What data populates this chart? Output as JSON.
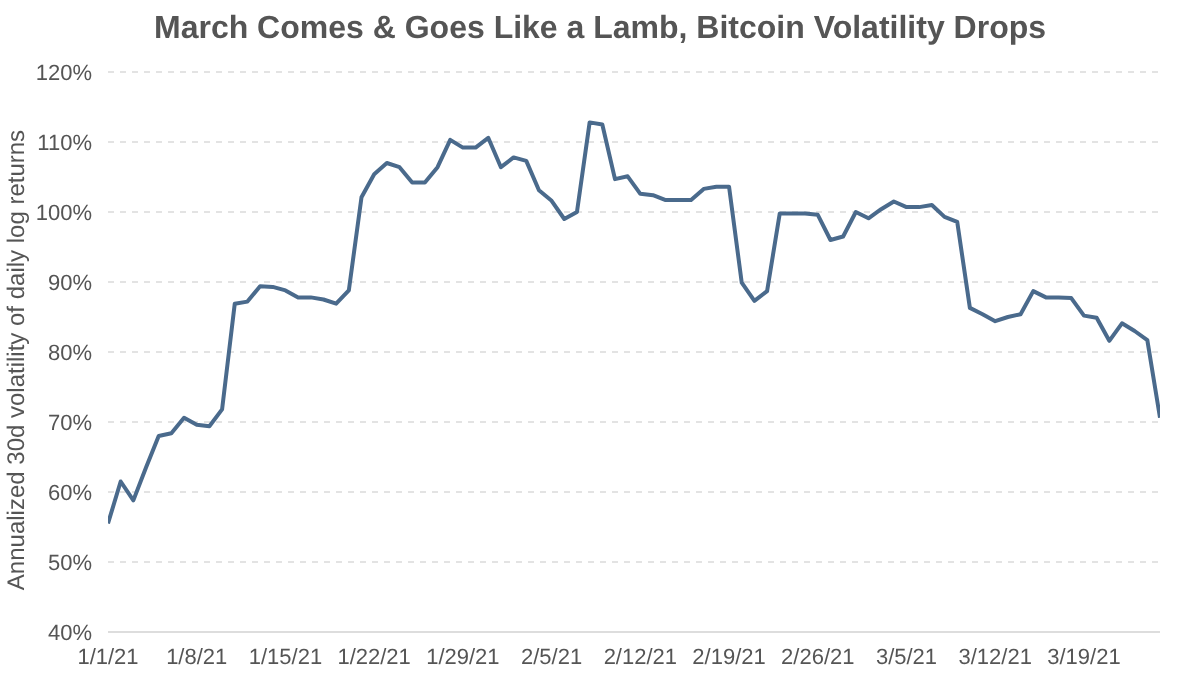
{
  "chart_data": {
    "type": "line",
    "title": "March Comes & Goes Like a Lamb, Bitcoin Volatility Drops",
    "ylabel": "Annualized 30d volatility of daily log returns",
    "x": [
      "--01-01",
      "--01-02",
      "--01-03",
      "--01-04",
      "--01-05",
      "--01-06",
      "--01-07",
      "--01-08",
      "--01-09",
      "--01-10",
      "--01-11",
      "--01-12",
      "--01-13",
      "--01-14",
      "--01-15",
      "--01-16",
      "--01-17",
      "--01-18",
      "--01-19",
      "--01-20",
      "--01-21",
      "--01-22",
      "--01-23",
      "--01-24",
      "--01-25",
      "--01-26",
      "--01-27",
      "--01-28",
      "--01-29",
      "--01-30",
      "--01-31",
      "--02-01",
      "--02-02",
      "--02-03",
      "--02-04",
      "--02-05",
      "--02-06",
      "--02-07",
      "--02-08",
      "--02-09",
      "--02-10",
      "--02-11",
      "--02-12",
      "--02-13",
      "--02-14",
      "--02-15",
      "--02-16",
      "--02-17",
      "--02-18",
      "--02-19",
      "--02-20",
      "--02-21",
      "--02-22",
      "--02-23",
      "--02-24",
      "--02-25",
      "--02-26",
      "--02-27",
      "--02-28",
      "--03-01",
      "--03-02",
      "--03-03",
      "--03-04",
      "--03-05",
      "--03-06",
      "--03-07",
      "--03-08",
      "--03-09",
      "--03-10",
      "--03-11",
      "--03-12",
      "--03-13",
      "--03-14",
      "--03-15",
      "--03-16",
      "--03-17",
      "--03-18",
      "--03-19",
      "--03-20",
      "--03-21",
      "--03-22",
      "--03-23",
      "--03-24",
      "--03-25"
    ],
    "series": [
      {
        "color": "#4a6a8c",
        "values": [
          55.5,
          61.5,
          58.8,
          63.5,
          68.0,
          68.4,
          70.6,
          69.6,
          69.4,
          71.8,
          86.9,
          87.2,
          89.4,
          89.3,
          88.8,
          87.8,
          87.8,
          87.5,
          86.9,
          88.8,
          102.1,
          105.4,
          107.0,
          106.4,
          104.2,
          104.2,
          106.4,
          110.3,
          109.2,
          109.2,
          110.6,
          106.4,
          107.8,
          107.3,
          103.1,
          101.6,
          99.0,
          100.0,
          112.8,
          112.5,
          104.7,
          105.1,
          102.6,
          102.4,
          101.7,
          101.7,
          101.7,
          103.3,
          103.6,
          103.6,
          89.9,
          87.3,
          88.7,
          99.8,
          99.8,
          99.8,
          99.6,
          96.0,
          96.5,
          100.0,
          99.1,
          100.4,
          101.5,
          100.7,
          100.7,
          101.0,
          99.3,
          98.6,
          86.3,
          85.4,
          84.4,
          85.0,
          85.4,
          88.7,
          87.8,
          87.8,
          87.7,
          85.2,
          84.9,
          81.6,
          84.1,
          83.0,
          81.7,
          70.6
        ]
      }
    ],
    "xlim": [
      "--01-01",
      "--03-25"
    ],
    "xticks": [
      {
        "value": "--01-01",
        "label": "1/1/21"
      },
      {
        "value": "--01-08",
        "label": "1/8/21"
      },
      {
        "value": "--01-15",
        "label": "1/15/21"
      },
      {
        "value": "--01-22",
        "label": "1/22/21"
      },
      {
        "value": "--01-29",
        "label": "1/29/21"
      },
      {
        "value": "--02-05",
        "label": "2/5/21"
      },
      {
        "value": "--02-12",
        "label": "2/12/21"
      },
      {
        "value": "--02-19",
        "label": "2/19/21"
      },
      {
        "value": "--02-26",
        "label": "2/26/21"
      },
      {
        "value": "--03-05",
        "label": "3/5/21"
      },
      {
        "value": "--03-12",
        "label": "3/12/21"
      },
      {
        "value": "--03-19",
        "label": "3/19/21"
      }
    ],
    "ylim": [
      40,
      120
    ],
    "yticks": [
      {
        "value": 40,
        "label": "40%"
      },
      {
        "value": 50,
        "label": "50%"
      },
      {
        "value": 60,
        "label": "60%"
      },
      {
        "value": 70,
        "label": "70%"
      },
      {
        "value": 80,
        "label": "80%"
      },
      {
        "value": 90,
        "label": "90%"
      },
      {
        "value": 100,
        "label": "100%"
      },
      {
        "value": 110,
        "label": "110%"
      },
      {
        "value": 120,
        "label": "120%"
      }
    ],
    "grid": "y",
    "marker": "none",
    "line_style": "solid"
  }
}
